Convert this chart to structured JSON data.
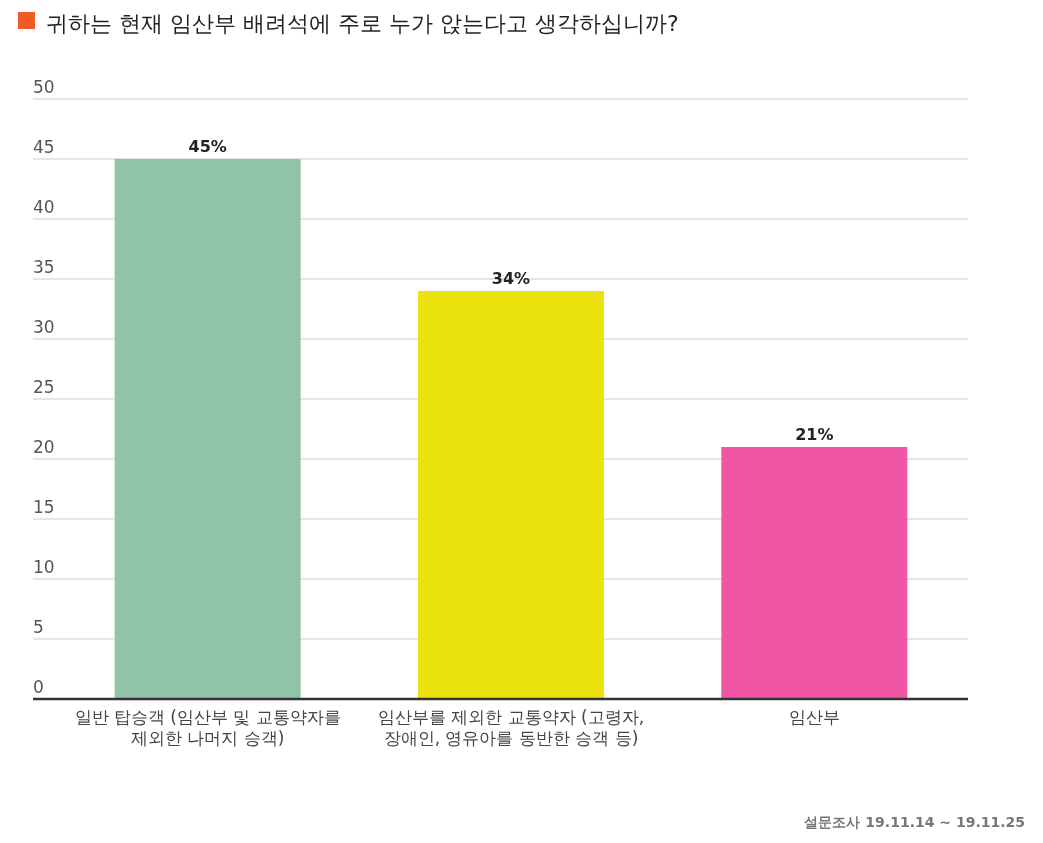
{
  "chart_data": {
    "type": "bar",
    "title": "귀하는 현재 임산부 배려석에 주로 누가 앉는다고 생각하십니까?",
    "categories": [
      "일반 탑승객 (임산부 및 교통약자를 제외한 나머지 승객)",
      "임산부를 제외한 교통약자 (고령자, 장애인, 영유아를 동반한 승객 등)",
      "임산부"
    ],
    "values": [
      45,
      34,
      21
    ],
    "colors": [
      "#90c3a8",
      "#ece20e",
      "#f156a4"
    ],
    "value_labels": [
      "45%",
      "34%",
      "21%"
    ],
    "ylim": [
      0,
      50
    ],
    "yticks": [
      0,
      5,
      10,
      15,
      20,
      25,
      30,
      35,
      40,
      45,
      50
    ],
    "grid": "y",
    "annotations": [
      "설문조사 19.11.14 ~ 19.11.25"
    ]
  }
}
